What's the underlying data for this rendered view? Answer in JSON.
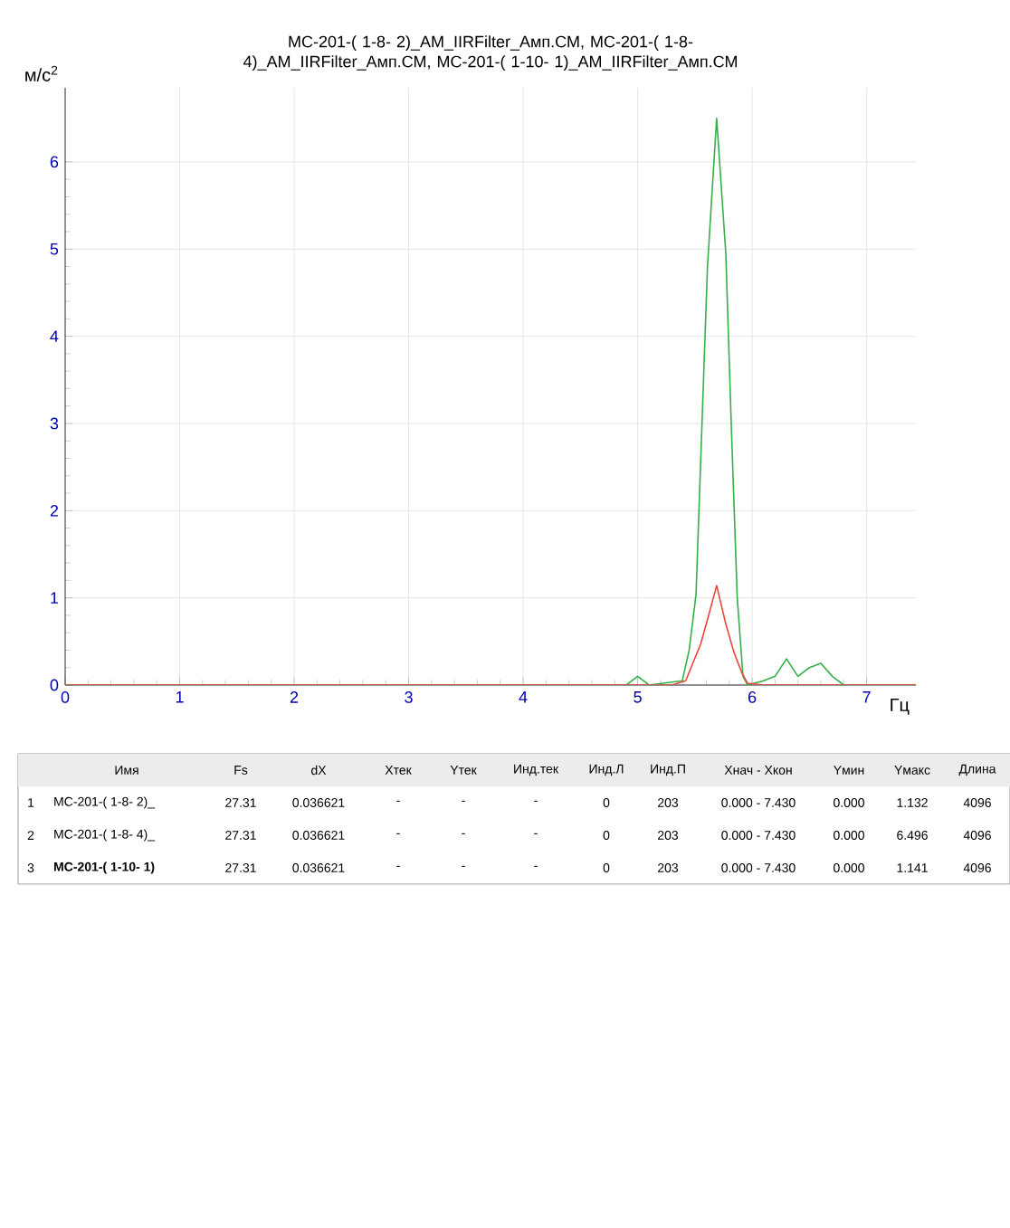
{
  "chart_data": {
    "type": "line",
    "title": "МС-201-( 1-8- 2)_AM_IIRFilter_Амп.СМ, МС-201-( 1-8- 4)_AM_IIRFilter_Амп.СМ, МС-201-( 1-10- 1)_AM_IIRFilter_Амп.СМ",
    "xlabel": "Гц",
    "ylabel": "м/с$^{2}$",
    "xlim": [
      0,
      7.43
    ],
    "ylim": [
      0,
      6.85
    ],
    "xticks": [
      0,
      1,
      2,
      3,
      4,
      5,
      6,
      7
    ],
    "yticks": [
      0,
      1,
      2,
      3,
      4,
      5,
      6
    ],
    "grid": true,
    "marker": "none",
    "line_style": "solid",
    "series": [
      {
        "color": "#33b04a",
        "x": [
          0,
          4.9,
          5.0,
          5.1,
          5.39,
          5.45,
          5.51,
          5.61,
          5.69,
          5.77,
          5.82,
          5.87,
          5.92,
          5.96,
          6.1,
          6.2,
          6.3,
          6.4,
          6.5,
          6.6,
          6.7,
          6.8,
          7.43
        ],
        "values": [
          0,
          0,
          0.1,
          0,
          0.05,
          0.4,
          1.04,
          4.8,
          6.5,
          4.95,
          2.9,
          1.0,
          0.1,
          0,
          0.05,
          0.1,
          0.3,
          0.1,
          0.2,
          0.25,
          0.1,
          0,
          0
        ]
      },
      {
        "color": "#e8483c",
        "x": [
          0,
          5.3,
          5.42,
          5.55,
          5.61,
          5.69,
          5.77,
          5.84,
          5.91,
          5.96,
          6.1,
          7.43
        ],
        "values": [
          0,
          0,
          0.05,
          0.47,
          0.75,
          1.14,
          0.7,
          0.38,
          0.14,
          0.02,
          0,
          0
        ]
      }
    ],
    "annotations": [
      "Имя",
      "Fs",
      "dX",
      "Xтек",
      "Yтек",
      "Инд.тек",
      "Инд.Л",
      "Инд.П",
      "Xнач - Xкон",
      "Yмин",
      "Yмакс",
      "Длина",
      "1",
      "МС-201-( 1-8- 2)_",
      "27.31",
      "0.036621",
      "-",
      "-",
      "-",
      "0",
      "203",
      "0.000 - 7.430",
      "0.000",
      "1.132",
      "4096",
      "2",
      "МС-201-( 1-8- 4)_",
      "27.31",
      "0.036621",
      "-",
      "-",
      "-",
      "0",
      "203",
      "0.000 - 7.430",
      "0.000",
      "6.496",
      "4096",
      "3",
      "**МС-201-( 1-10- 1)**",
      "27.31",
      "0.036621",
      "-",
      "-",
      "-",
      "0",
      "203",
      "0.000 - 7.430",
      "0.000",
      "1.141",
      "4096"
    ]
  }
}
